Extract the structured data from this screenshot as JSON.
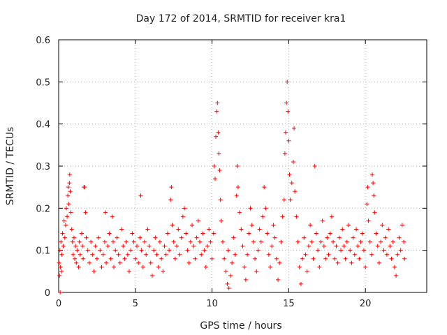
{
  "chart_data": {
    "type": "scatter",
    "title": "Day 172 of 2014, SRMTID for receiver kra1",
    "xlabel": "GPS time / hours",
    "ylabel": "SRMTID / TECUs",
    "xlim": [
      0,
      24
    ],
    "ylim": [
      0,
      0.6
    ],
    "x_ticks": [
      0,
      5,
      10,
      15,
      20
    ],
    "x_tick_labels": [
      "0",
      "5",
      "10",
      "15",
      "20"
    ],
    "y_ticks": [
      0,
      0.1,
      0.2,
      0.3,
      0.4,
      0.5,
      0.6
    ],
    "y_tick_labels": [
      "0",
      "0.1",
      "0.2",
      "0.3",
      "0.4",
      "0.5",
      "0.6"
    ],
    "grid": true,
    "marker": "plus",
    "marker_color": "#ff0000",
    "series": [
      {
        "name": "SRMTID",
        "points": [
          [
            0.02,
            0.07
          ],
          [
            0.05,
            0.04
          ],
          [
            0.08,
            0.1
          ],
          [
            0.1,
            0.0
          ],
          [
            0.12,
            0.06
          ],
          [
            0.15,
            0.12
          ],
          [
            0.18,
            0.05
          ],
          [
            0.2,
            0.09
          ],
          [
            0.25,
            0.14
          ],
          [
            0.3,
            0.11
          ],
          [
            0.35,
            0.17
          ],
          [
            0.4,
            0.13
          ],
          [
            0.45,
            0.16
          ],
          [
            0.5,
            0.2
          ],
          [
            0.55,
            0.18
          ],
          [
            0.6,
            0.23
          ],
          [
            0.62,
            0.25
          ],
          [
            0.65,
            0.21
          ],
          [
            0.7,
            0.26
          ],
          [
            0.72,
            0.28
          ],
          [
            0.75,
            0.24
          ],
          [
            0.8,
            0.19
          ],
          [
            0.85,
            0.15
          ],
          [
            0.9,
            0.12
          ],
          [
            0.95,
            0.09
          ],
          [
            1.0,
            0.13
          ],
          [
            1.05,
            0.08
          ],
          [
            1.1,
            0.11
          ],
          [
            1.15,
            0.07
          ],
          [
            1.2,
            0.1
          ],
          [
            1.3,
            0.06
          ],
          [
            1.35,
            0.12
          ],
          [
            1.4,
            0.09
          ],
          [
            1.5,
            0.14
          ],
          [
            1.55,
            0.11
          ],
          [
            1.6,
            0.08
          ],
          [
            1.65,
            0.25
          ],
          [
            1.7,
            0.25
          ],
          [
            1.75,
            0.19
          ],
          [
            1.8,
            0.13
          ],
          [
            1.9,
            0.1
          ],
          [
            2.0,
            0.07
          ],
          [
            2.1,
            0.12
          ],
          [
            2.2,
            0.09
          ],
          [
            2.3,
            0.05
          ],
          [
            2.4,
            0.11
          ],
          [
            2.5,
            0.08
          ],
          [
            2.6,
            0.13
          ],
          [
            2.7,
            0.1
          ],
          [
            2.8,
            0.06
          ],
          [
            2.9,
            0.09
          ],
          [
            3.0,
            0.12
          ],
          [
            3.05,
            0.19
          ],
          [
            3.1,
            0.07
          ],
          [
            3.2,
            0.11
          ],
          [
            3.3,
            0.14
          ],
          [
            3.4,
            0.08
          ],
          [
            3.5,
            0.18
          ],
          [
            3.55,
            0.12
          ],
          [
            3.6,
            0.06
          ],
          [
            3.7,
            0.1
          ],
          [
            3.8,
            0.13
          ],
          [
            3.9,
            0.09
          ],
          [
            4.0,
            0.07
          ],
          [
            4.1,
            0.15
          ],
          [
            4.2,
            0.11
          ],
          [
            4.3,
            0.08
          ],
          [
            4.4,
            0.12
          ],
          [
            4.5,
            0.09
          ],
          [
            4.6,
            0.05
          ],
          [
            4.7,
            0.1
          ],
          [
            4.8,
            0.14
          ],
          [
            4.9,
            0.12
          ],
          [
            5.0,
            0.08
          ],
          [
            5.1,
            0.11
          ],
          [
            5.2,
            0.07
          ],
          [
            5.3,
            0.13
          ],
          [
            5.35,
            0.23
          ],
          [
            5.4,
            0.1
          ],
          [
            5.5,
            0.06
          ],
          [
            5.6,
            0.12
          ],
          [
            5.7,
            0.09
          ],
          [
            5.8,
            0.15
          ],
          [
            5.9,
            0.11
          ],
          [
            6.0,
            0.07
          ],
          [
            6.1,
            0.04
          ],
          [
            6.2,
            0.1
          ],
          [
            6.3,
            0.13
          ],
          [
            6.4,
            0.09
          ],
          [
            6.5,
            0.06
          ],
          [
            6.6,
            0.12
          ],
          [
            6.7,
            0.08
          ],
          [
            6.8,
            0.05
          ],
          [
            6.9,
            0.11
          ],
          [
            7.0,
            0.09
          ],
          [
            7.1,
            0.14
          ],
          [
            7.2,
            0.1
          ],
          [
            7.3,
            0.22
          ],
          [
            7.35,
            0.25
          ],
          [
            7.4,
            0.16
          ],
          [
            7.5,
            0.12
          ],
          [
            7.6,
            0.08
          ],
          [
            7.7,
            0.11
          ],
          [
            7.8,
            0.15
          ],
          [
            7.9,
            0.09
          ],
          [
            8.0,
            0.13
          ],
          [
            8.1,
            0.18
          ],
          [
            8.2,
            0.2
          ],
          [
            8.3,
            0.14
          ],
          [
            8.4,
            0.1
          ],
          [
            8.5,
            0.07
          ],
          [
            8.6,
            0.12
          ],
          [
            8.7,
            0.16
          ],
          [
            8.8,
            0.11
          ],
          [
            8.9,
            0.08
          ],
          [
            9.0,
            0.13
          ],
          [
            9.1,
            0.17
          ],
          [
            9.2,
            0.12
          ],
          [
            9.3,
            0.09
          ],
          [
            9.4,
            0.14
          ],
          [
            9.5,
            0.1
          ],
          [
            9.6,
            0.06
          ],
          [
            9.7,
            0.11
          ],
          [
            9.8,
            0.15
          ],
          [
            9.9,
            0.12
          ],
          [
            10.0,
            0.08
          ],
          [
            10.1,
            0.14
          ],
          [
            10.15,
            0.3
          ],
          [
            10.2,
            0.27
          ],
          [
            10.25,
            0.37
          ],
          [
            10.3,
            0.43
          ],
          [
            10.35,
            0.45
          ],
          [
            10.4,
            0.38
          ],
          [
            10.45,
            0.33
          ],
          [
            10.5,
            0.29
          ],
          [
            10.55,
            0.22
          ],
          [
            10.6,
            0.17
          ],
          [
            10.7,
            0.12
          ],
          [
            10.8,
            0.08
          ],
          [
            10.9,
            0.05
          ],
          [
            11.0,
            0.02
          ],
          [
            11.05,
            0.1
          ],
          [
            11.1,
            0.01
          ],
          [
            11.2,
            0.04
          ],
          [
            11.3,
            0.07
          ],
          [
            11.4,
            0.13
          ],
          [
            11.5,
            0.09
          ],
          [
            11.6,
            0.23
          ],
          [
            11.65,
            0.3
          ],
          [
            11.7,
            0.25
          ],
          [
            11.8,
            0.19
          ],
          [
            11.9,
            0.15
          ],
          [
            12.0,
            0.11
          ],
          [
            12.1,
            0.06
          ],
          [
            12.2,
            0.03
          ],
          [
            12.3,
            0.09
          ],
          [
            12.4,
            0.14
          ],
          [
            12.5,
            0.2
          ],
          [
            12.6,
            0.16
          ],
          [
            12.7,
            0.12
          ],
          [
            12.8,
            0.08
          ],
          [
            12.9,
            0.05
          ],
          [
            13.0,
            0.1
          ],
          [
            13.1,
            0.15
          ],
          [
            13.2,
            0.12
          ],
          [
            13.3,
            0.18
          ],
          [
            13.4,
            0.25
          ],
          [
            13.5,
            0.2
          ],
          [
            13.6,
            0.14
          ],
          [
            13.7,
            0.09
          ],
          [
            13.8,
            0.06
          ],
          [
            13.9,
            0.11
          ],
          [
            14.0,
            0.16
          ],
          [
            14.1,
            0.13
          ],
          [
            14.2,
            0.08
          ],
          [
            14.3,
            0.03
          ],
          [
            14.4,
            0.07
          ],
          [
            14.5,
            0.12
          ],
          [
            14.6,
            0.18
          ],
          [
            14.7,
            0.22
          ],
          [
            14.75,
            0.33
          ],
          [
            14.8,
            0.38
          ],
          [
            14.85,
            0.45
          ],
          [
            14.9,
            0.5
          ],
          [
            14.95,
            0.43
          ],
          [
            15.0,
            0.36
          ],
          [
            15.05,
            0.28
          ],
          [
            15.1,
            0.22
          ],
          [
            15.2,
            0.26
          ],
          [
            15.3,
            0.31
          ],
          [
            15.35,
            0.39
          ],
          [
            15.4,
            0.24
          ],
          [
            15.5,
            0.18
          ],
          [
            15.6,
            0.12
          ],
          [
            15.7,
            0.06
          ],
          [
            15.8,
            0.02
          ],
          [
            15.9,
            0.08
          ],
          [
            16.0,
            0.13
          ],
          [
            16.1,
            0.09
          ],
          [
            16.2,
            0.05
          ],
          [
            16.3,
            0.11
          ],
          [
            16.4,
            0.16
          ],
          [
            16.5,
            0.12
          ],
          [
            16.6,
            0.08
          ],
          [
            16.7,
            0.3
          ],
          [
            16.8,
            0.14
          ],
          [
            16.9,
            0.1
          ],
          [
            17.0,
            0.06
          ],
          [
            17.1,
            0.12
          ],
          [
            17.2,
            0.17
          ],
          [
            17.3,
            0.11
          ],
          [
            17.4,
            0.08
          ],
          [
            17.5,
            0.13
          ],
          [
            17.6,
            0.09
          ],
          [
            17.7,
            0.14
          ],
          [
            17.8,
            0.18
          ],
          [
            17.9,
            0.12
          ],
          [
            18.0,
            0.08
          ],
          [
            18.1,
            0.11
          ],
          [
            18.2,
            0.07
          ],
          [
            18.3,
            0.13
          ],
          [
            18.4,
            0.1
          ],
          [
            18.5,
            0.15
          ],
          [
            18.6,
            0.11
          ],
          [
            18.7,
            0.08
          ],
          [
            18.8,
            0.12
          ],
          [
            18.9,
            0.16
          ],
          [
            19.0,
            0.1
          ],
          [
            19.1,
            0.07
          ],
          [
            19.2,
            0.13
          ],
          [
            19.3,
            0.09
          ],
          [
            19.4,
            0.15
          ],
          [
            19.5,
            0.11
          ],
          [
            19.6,
            0.08
          ],
          [
            19.7,
            0.12
          ],
          [
            19.8,
            0.14
          ],
          [
            19.9,
            0.1
          ],
          [
            20.0,
            0.06
          ],
          [
            20.1,
            0.21
          ],
          [
            20.15,
            0.25
          ],
          [
            20.2,
            0.17
          ],
          [
            20.3,
            0.12
          ],
          [
            20.4,
            0.09
          ],
          [
            20.45,
            0.28
          ],
          [
            20.5,
            0.26
          ],
          [
            20.55,
            0.23
          ],
          [
            20.6,
            0.19
          ],
          [
            20.7,
            0.14
          ],
          [
            20.8,
            0.11
          ],
          [
            20.9,
            0.07
          ],
          [
            21.0,
            0.12
          ],
          [
            21.1,
            0.16
          ],
          [
            21.2,
            0.1
          ],
          [
            21.3,
            0.13
          ],
          [
            21.4,
            0.09
          ],
          [
            21.5,
            0.15
          ],
          [
            21.6,
            0.11
          ],
          [
            21.7,
            0.08
          ],
          [
            21.8,
            0.12
          ],
          [
            21.9,
            0.06
          ],
          [
            22.0,
            0.04
          ],
          [
            22.1,
            0.09
          ],
          [
            22.2,
            0.13
          ],
          [
            22.3,
            0.1
          ],
          [
            22.4,
            0.16
          ],
          [
            22.5,
            0.12
          ],
          [
            22.55,
            0.08
          ]
        ]
      }
    ]
  }
}
